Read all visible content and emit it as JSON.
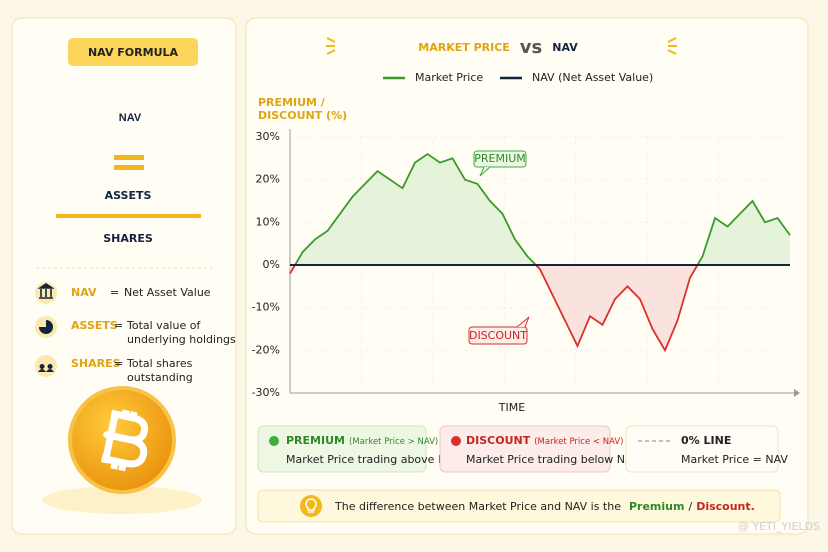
{
  "chart_data": {
    "type": "line",
    "title": [
      "MARKET PRICE",
      "vs",
      "NAV"
    ],
    "ylabel": [
      "PREMIUM /",
      "DISCOUNT (%)"
    ],
    "xlabel": "TIME",
    "ylim": [
      -30,
      30
    ],
    "yticks": [
      {
        "value": 30,
        "label": "30%"
      },
      {
        "value": 20,
        "label": "20%"
      },
      {
        "value": 10,
        "label": "10%"
      },
      {
        "value": 0,
        "label": "0%"
      },
      {
        "value": -10,
        "label": "-10%"
      },
      {
        "value": -20,
        "label": "-20%"
      },
      {
        "value": -30,
        "label": "-30%"
      }
    ],
    "grid": true,
    "series": [
      {
        "name": "Market Price",
        "color": "#3a9a2a",
        "values": [
          -2,
          3,
          6,
          8,
          12,
          16,
          19,
          22,
          20,
          18,
          24,
          26,
          24,
          25,
          20,
          19,
          15,
          12,
          6,
          2,
          -1,
          -7,
          -13,
          -19,
          -12,
          -14,
          -8,
          -5,
          -8,
          -15,
          -20,
          -13,
          -3,
          2,
          11,
          9,
          12,
          15,
          10,
          11,
          7
        ]
      },
      {
        "name": "NAV (Net Asset Value)",
        "color": "#14243f",
        "values": [
          0,
          0,
          0,
          0,
          0,
          0,
          0,
          0,
          0,
          0,
          0,
          0,
          0,
          0,
          0,
          0,
          0,
          0,
          0,
          0,
          0,
          0,
          0,
          0,
          0,
          0,
          0,
          0,
          0,
          0,
          0,
          0,
          0,
          0,
          0,
          0,
          0,
          0,
          0,
          0,
          0
        ]
      }
    ],
    "annotations": [
      "PREMIUM",
      "DISCOUNT"
    ]
  },
  "sidebar": {
    "badge": "NAV FORMULA",
    "left": "NAV",
    "numerator": "ASSETS",
    "denominator": "SHARES",
    "definitions": [
      {
        "term": "NAV",
        "eq": "=",
        "text": [
          "Net Asset Value"
        ]
      },
      {
        "term": "ASSETS",
        "eq": "=",
        "text": [
          "Total value of",
          "underlying holdings"
        ]
      },
      {
        "term": "SHARES",
        "eq": "=",
        "text": [
          "Total shares",
          "outstanding"
        ]
      }
    ]
  },
  "cards": [
    {
      "title": "PREMIUM",
      "note": "(Market Price > NAV)",
      "text": "Market Price trading above NAV"
    },
    {
      "title": "DISCOUNT",
      "note": "(Market Price < NAV)",
      "text": "Market Price trading below NAV"
    },
    {
      "title": "0% LINE",
      "text": "Market Price = NAV"
    }
  ],
  "footer": {
    "text": "The difference between Market Price and NAV is the",
    "premium": "Premium",
    "slash": "/",
    "discount": "Discount."
  },
  "watermark": "@ YETI_YIELDS"
}
